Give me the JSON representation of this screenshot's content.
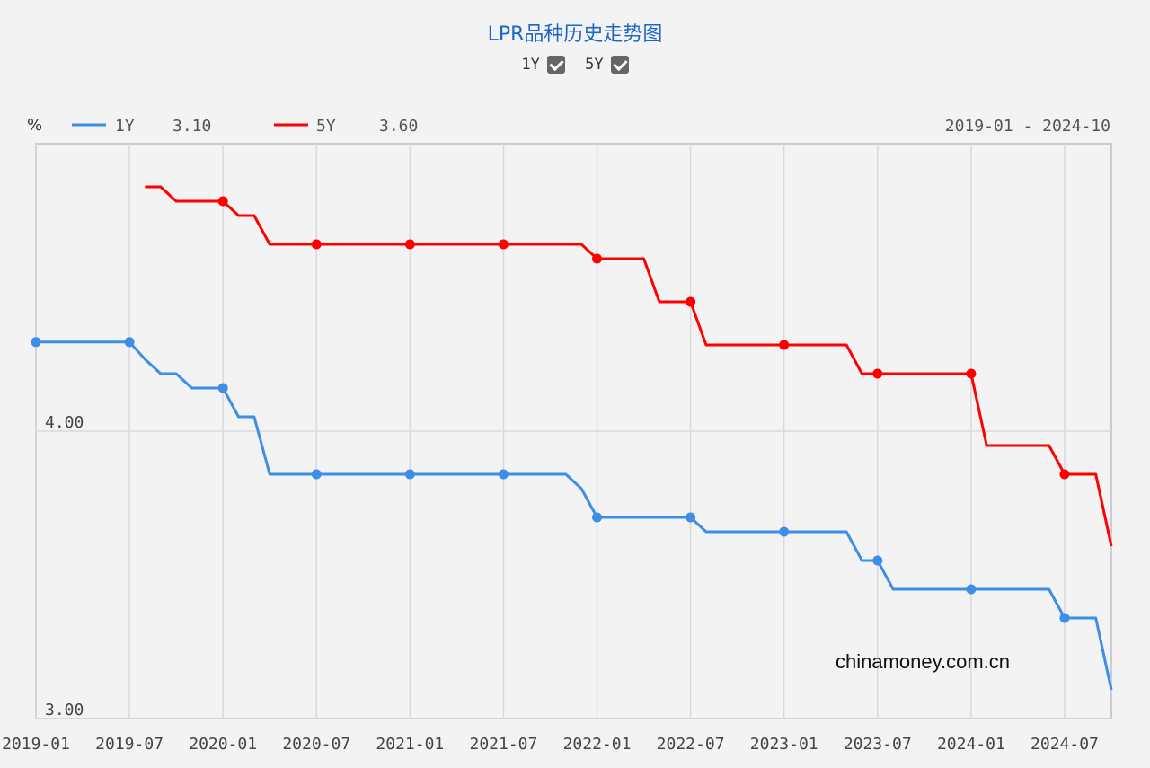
{
  "title": "LPR品种历史走势图",
  "toggles": [
    {
      "label": "1Y",
      "checked": true
    },
    {
      "label": "5Y",
      "checked": true
    }
  ],
  "unit": "%",
  "legend": [
    {
      "name": "1Y",
      "value": "3.10",
      "color": "#3d8ee6"
    },
    {
      "name": "5Y",
      "value": "3.60",
      "color": "#ff0000"
    }
  ],
  "date_range": "2019-01 - 2024-10",
  "watermark": "chinamoney.com.cn",
  "chart_data": {
    "type": "line",
    "ylim": [
      3.0,
      5.0
    ],
    "grid": true,
    "x_ticks": [
      "2019-01",
      "2019-07",
      "2020-01",
      "2020-07",
      "2021-01",
      "2021-07",
      "2022-01",
      "2022-07",
      "2023-01",
      "2023-07",
      "2024-01",
      "2024-07"
    ],
    "y_ticks": [
      "4.00",
      "3.00"
    ],
    "series": [
      {
        "name": "1Y",
        "color": "#3d8ee6",
        "points": [
          [
            "2019-01",
            4.31
          ],
          [
            "2019-07",
            4.31
          ],
          [
            "2019-08",
            4.25
          ],
          [
            "2019-09",
            4.2
          ],
          [
            "2019-10",
            4.2
          ],
          [
            "2019-11",
            4.15
          ],
          [
            "2019-12",
            4.15
          ],
          [
            "2020-01",
            4.15
          ],
          [
            "2020-02",
            4.05
          ],
          [
            "2020-03",
            4.05
          ],
          [
            "2020-04",
            3.85
          ],
          [
            "2020-05",
            3.85
          ],
          [
            "2020-06",
            3.85
          ],
          [
            "2020-07",
            3.85
          ],
          [
            "2020-08",
            3.85
          ],
          [
            "2020-09",
            3.85
          ],
          [
            "2020-10",
            3.85
          ],
          [
            "2020-11",
            3.85
          ],
          [
            "2020-12",
            3.85
          ],
          [
            "2021-01",
            3.85
          ],
          [
            "2021-02",
            3.85
          ],
          [
            "2021-03",
            3.85
          ],
          [
            "2021-04",
            3.85
          ],
          [
            "2021-05",
            3.85
          ],
          [
            "2021-06",
            3.85
          ],
          [
            "2021-07",
            3.85
          ],
          [
            "2021-08",
            3.85
          ],
          [
            "2021-09",
            3.85
          ],
          [
            "2021-10",
            3.85
          ],
          [
            "2021-11",
            3.85
          ],
          [
            "2021-12",
            3.8
          ],
          [
            "2022-01",
            3.7
          ],
          [
            "2022-02",
            3.7
          ],
          [
            "2022-03",
            3.7
          ],
          [
            "2022-04",
            3.7
          ],
          [
            "2022-05",
            3.7
          ],
          [
            "2022-06",
            3.7
          ],
          [
            "2022-07",
            3.7
          ],
          [
            "2022-08",
            3.65
          ],
          [
            "2022-09",
            3.65
          ],
          [
            "2022-10",
            3.65
          ],
          [
            "2022-11",
            3.65
          ],
          [
            "2022-12",
            3.65
          ],
          [
            "2023-01",
            3.65
          ],
          [
            "2023-02",
            3.65
          ],
          [
            "2023-03",
            3.65
          ],
          [
            "2023-04",
            3.65
          ],
          [
            "2023-05",
            3.65
          ],
          [
            "2023-06",
            3.55
          ],
          [
            "2023-07",
            3.55
          ],
          [
            "2023-08",
            3.45
          ],
          [
            "2023-09",
            3.45
          ],
          [
            "2023-10",
            3.45
          ],
          [
            "2023-11",
            3.45
          ],
          [
            "2023-12",
            3.45
          ],
          [
            "2024-01",
            3.45
          ],
          [
            "2024-02",
            3.45
          ],
          [
            "2024-03",
            3.45
          ],
          [
            "2024-04",
            3.45
          ],
          [
            "2024-05",
            3.45
          ],
          [
            "2024-06",
            3.45
          ],
          [
            "2024-07",
            3.35
          ],
          [
            "2024-08",
            3.35
          ],
          [
            "2024-09",
            3.35
          ],
          [
            "2024-10",
            3.1
          ]
        ]
      },
      {
        "name": "5Y",
        "color": "#ff0000",
        "points": [
          [
            "2019-08",
            4.85
          ],
          [
            "2019-09",
            4.85
          ],
          [
            "2019-10",
            4.8
          ],
          [
            "2019-11",
            4.8
          ],
          [
            "2019-12",
            4.8
          ],
          [
            "2020-01",
            4.8
          ],
          [
            "2020-02",
            4.75
          ],
          [
            "2020-03",
            4.75
          ],
          [
            "2020-04",
            4.65
          ],
          [
            "2020-05",
            4.65
          ],
          [
            "2020-06",
            4.65
          ],
          [
            "2020-07",
            4.65
          ],
          [
            "2020-08",
            4.65
          ],
          [
            "2020-09",
            4.65
          ],
          [
            "2020-10",
            4.65
          ],
          [
            "2020-11",
            4.65
          ],
          [
            "2020-12",
            4.65
          ],
          [
            "2021-01",
            4.65
          ],
          [
            "2021-02",
            4.65
          ],
          [
            "2021-03",
            4.65
          ],
          [
            "2021-04",
            4.65
          ],
          [
            "2021-05",
            4.65
          ],
          [
            "2021-06",
            4.65
          ],
          [
            "2021-07",
            4.65
          ],
          [
            "2021-08",
            4.65
          ],
          [
            "2021-09",
            4.65
          ],
          [
            "2021-10",
            4.65
          ],
          [
            "2021-11",
            4.65
          ],
          [
            "2021-12",
            4.65
          ],
          [
            "2022-01",
            4.6
          ],
          [
            "2022-02",
            4.6
          ],
          [
            "2022-03",
            4.6
          ],
          [
            "2022-04",
            4.6
          ],
          [
            "2022-05",
            4.45
          ],
          [
            "2022-06",
            4.45
          ],
          [
            "2022-07",
            4.45
          ],
          [
            "2022-08",
            4.3
          ],
          [
            "2022-09",
            4.3
          ],
          [
            "2022-10",
            4.3
          ],
          [
            "2022-11",
            4.3
          ],
          [
            "2022-12",
            4.3
          ],
          [
            "2023-01",
            4.3
          ],
          [
            "2023-02",
            4.3
          ],
          [
            "2023-03",
            4.3
          ],
          [
            "2023-04",
            4.3
          ],
          [
            "2023-05",
            4.3
          ],
          [
            "2023-06",
            4.2
          ],
          [
            "2023-07",
            4.2
          ],
          [
            "2023-08",
            4.2
          ],
          [
            "2023-09",
            4.2
          ],
          [
            "2023-10",
            4.2
          ],
          [
            "2023-11",
            4.2
          ],
          [
            "2023-12",
            4.2
          ],
          [
            "2024-01",
            4.2
          ],
          [
            "2024-02",
            3.95
          ],
          [
            "2024-03",
            3.95
          ],
          [
            "2024-04",
            3.95
          ],
          [
            "2024-05",
            3.95
          ],
          [
            "2024-06",
            3.95
          ],
          [
            "2024-07",
            3.85
          ],
          [
            "2024-08",
            3.85
          ],
          [
            "2024-09",
            3.85
          ],
          [
            "2024-10",
            3.6
          ]
        ]
      }
    ]
  }
}
